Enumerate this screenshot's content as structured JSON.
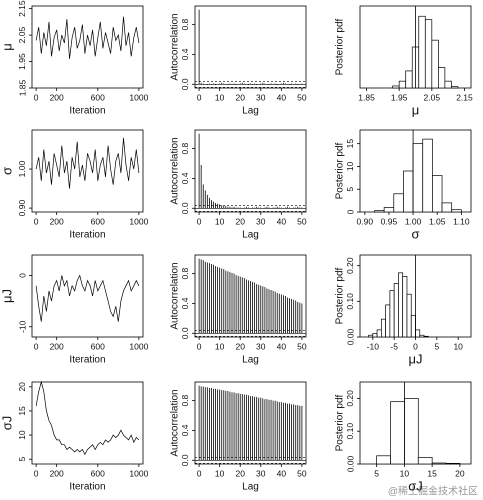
{
  "chart_data": [
    {
      "type": "trace",
      "xlabel": "Iteration",
      "ylabel": "μ",
      "x": [
        0,
        25,
        50,
        75,
        100,
        125,
        150,
        175,
        200,
        225,
        250,
        275,
        300,
        325,
        350,
        375,
        400,
        425,
        450,
        475,
        500,
        525,
        550,
        575,
        600,
        625,
        650,
        675,
        700,
        725,
        750,
        775,
        800,
        825,
        850,
        875,
        900,
        925,
        950,
        975,
        1000
      ],
      "values": [
        2.03,
        2.08,
        1.98,
        2.06,
        2.01,
        2.1,
        1.97,
        2.04,
        2.07,
        1.99,
        2.05,
        2.02,
        2.11,
        1.96,
        2.04,
        2.08,
        2.0,
        2.03,
        2.09,
        1.98,
        2.05,
        2.01,
        2.07,
        1.97,
        2.04,
        2.1,
        2.0,
        2.06,
        2.02,
        1.98,
        2.08,
        2.03,
        2.05,
        1.99,
        2.12,
        2.01,
        2.06,
        1.97,
        2.04,
        2.08,
        2.02
      ],
      "xlim": [
        -40,
        1040
      ],
      "ylim": [
        1.85,
        2.16
      ],
      "xticks": [
        0,
        200,
        600,
        1000
      ],
      "yticks": [
        1.85,
        1.95,
        2.05,
        2.15
      ]
    },
    {
      "type": "acf",
      "xlabel": "Lag",
      "ylabel": "Autocorrelation",
      "x": [
        0,
        1,
        2,
        3,
        4,
        5,
        6,
        7,
        8,
        9,
        10,
        11,
        12,
        13,
        14,
        15,
        16,
        17,
        18,
        19,
        20,
        21,
        22,
        23,
        24,
        25,
        26,
        27,
        28,
        29,
        30,
        31,
        32,
        33,
        34,
        35,
        36,
        37,
        38,
        39,
        40,
        41,
        42,
        43,
        44,
        45,
        46,
        47,
        48,
        49,
        50
      ],
      "values": [
        1,
        0.02,
        0.01,
        0.0,
        -0.01,
        0.01,
        0.0,
        0.01,
        -0.01,
        0.0,
        0.01,
        0.02,
        0.01,
        0.0,
        -0.01,
        0.01,
        0.0,
        0.01,
        -0.01,
        0.0,
        0.01,
        0.02,
        0.01,
        0.0,
        -0.01,
        0.01,
        0.0,
        0.01,
        -0.01,
        0.0,
        0.01,
        0.02,
        0.01,
        0.0,
        -0.01,
        0.01,
        0.0,
        0.01,
        -0.01,
        0.0,
        0.01,
        0.02,
        0.01,
        0.0,
        -0.01,
        0.01,
        0.0,
        0.01,
        -0.01,
        0.0,
        0.01
      ],
      "ci": [
        -0.04,
        0.04
      ],
      "xlim": [
        -2,
        52
      ],
      "ylim": [
        -0.05,
        1.05
      ],
      "xticks": [
        0,
        10,
        20,
        30,
        40,
        50
      ],
      "yticks": [
        {
          "value": 0,
          "label": "0.0"
        },
        {
          "value": 0.4,
          "label": "0.4"
        },
        {
          "value": 0.8,
          "label": "0.8"
        }
      ]
    },
    {
      "type": "histogram",
      "xlabel": "μ",
      "ylabel": "Posterior pdf",
      "bins": [
        1.93,
        1.95,
        1.97,
        1.99,
        2.01,
        2.03,
        2.05,
        2.07,
        2.09,
        2.11,
        2.13
      ],
      "values": [
        0.3,
        1,
        2.5,
        6,
        10.5,
        10,
        7,
        3,
        1,
        0.2
      ],
      "vline": 2.0,
      "xlim": [
        1.83,
        2.17
      ],
      "ylim": [
        0,
        12
      ],
      "xticks": [
        1.85,
        1.95,
        2.05,
        2.15
      ],
      "yticks": []
    },
    {
      "type": "trace",
      "xlabel": "Iteration",
      "ylabel": "σ",
      "x": [
        0,
        25,
        50,
        75,
        100,
        125,
        150,
        175,
        200,
        225,
        250,
        275,
        300,
        325,
        350,
        375,
        400,
        425,
        450,
        475,
        500,
        525,
        550,
        575,
        600,
        625,
        650,
        675,
        700,
        725,
        750,
        775,
        800,
        825,
        850,
        875,
        900,
        925,
        950,
        975,
        1000
      ],
      "values": [
        1.0,
        1.03,
        0.97,
        1.05,
        0.99,
        1.02,
        0.96,
        1.04,
        1.01,
        0.98,
        1.06,
        0.99,
        1.02,
        0.95,
        1.03,
        1.0,
        1.07,
        0.98,
        1.01,
        0.97,
        1.04,
        1.02,
        0.99,
        1.05,
        0.97,
        1.01,
        1.03,
        0.98,
        1.06,
        1.0,
        0.96,
        1.02,
        1.04,
        0.99,
        1.08,
        1.01,
        0.97,
        1.03,
        1.0,
        1.05,
        0.99
      ],
      "xlim": [
        -40,
        1040
      ],
      "ylim": [
        0.89,
        1.1
      ],
      "xticks": [
        0,
        200,
        600,
        1000
      ],
      "yticks": [
        {
          "value": 0.9,
          "label": "0.90"
        },
        {
          "value": 1,
          "label": "1.00"
        }
      ]
    },
    {
      "type": "acf",
      "xlabel": "Lag",
      "ylabel": "Autocorrelation",
      "x": [
        0,
        1,
        2,
        3,
        4,
        5,
        6,
        7,
        8,
        9,
        10,
        11,
        12,
        13,
        14,
        15,
        16,
        17,
        18,
        19,
        20,
        21,
        22,
        23,
        24,
        25,
        26,
        27,
        28,
        29,
        30,
        31,
        32,
        33,
        34,
        35,
        36,
        37,
        38,
        39,
        40,
        41,
        42,
        43,
        44,
        45,
        46,
        47,
        48,
        49,
        50
      ],
      "values": [
        1,
        0.58,
        0.32,
        0.24,
        0.18,
        0.14,
        0.11,
        0.09,
        0.07,
        0.06,
        0.05,
        0.04,
        0.03,
        0.03,
        0.02,
        0.02,
        0.01,
        0.02,
        0.01,
        0.01,
        0.01,
        0.0,
        0.01,
        0.02,
        0.01,
        0.0,
        0.01,
        0.01,
        0.02,
        0.01,
        0.01,
        0.0,
        0.01,
        0.02,
        0.01,
        0.0,
        0.01,
        0.01,
        0.02,
        0.01,
        0.01,
        0.0,
        0.01,
        0.02,
        0.01,
        0.0,
        0.01,
        0.01,
        0.02,
        0.01,
        0.01
      ],
      "ci": [
        -0.04,
        0.04
      ],
      "xlim": [
        -2,
        52
      ],
      "ylim": [
        -0.05,
        1.05
      ],
      "xticks": [
        0,
        10,
        20,
        30,
        40,
        50
      ],
      "yticks": [
        {
          "value": 0,
          "label": "0.0"
        },
        {
          "value": 0.4,
          "label": "0.4"
        },
        {
          "value": 0.8,
          "label": "0.8"
        }
      ]
    },
    {
      "type": "histogram",
      "xlabel": "σ",
      "ylabel": "Posterior pdf",
      "bins": [
        0.92,
        0.94,
        0.96,
        0.98,
        1.0,
        1.02,
        1.04,
        1.06,
        1.08,
        1.1
      ],
      "values": [
        0.3,
        1,
        4,
        9,
        15,
        16,
        8,
        2,
        0.5
      ],
      "vline": 1.0,
      "xlim": [
        0.89,
        1.12
      ],
      "ylim": [
        0,
        18
      ],
      "xticks": [
        {
          "value": 0.9,
          "label": "0.90"
        },
        0.95,
        {
          "value": 1,
          "label": "1.00"
        },
        1.05,
        {
          "value": 1.1,
          "label": "1.10"
        }
      ],
      "yticks": [
        0,
        5,
        10,
        15
      ]
    },
    {
      "type": "trace",
      "xlabel": "Iteration",
      "ylabel": "μJ",
      "x": [
        0,
        25,
        50,
        75,
        100,
        125,
        150,
        175,
        200,
        225,
        250,
        275,
        300,
        325,
        350,
        375,
        400,
        425,
        450,
        475,
        500,
        525,
        550,
        575,
        600,
        625,
        650,
        675,
        700,
        725,
        750,
        775,
        800,
        825,
        850,
        875,
        900,
        925,
        950,
        975,
        1000
      ],
      "values": [
        -2,
        -6,
        -9,
        -4,
        -7,
        -3,
        -5,
        -2,
        -1,
        -3,
        0,
        -2,
        -1,
        -4,
        -2,
        -3,
        -1,
        0,
        -2,
        -3,
        -1,
        -2,
        -4,
        -1,
        -3,
        -2,
        -1,
        -3,
        -5,
        -7,
        -8,
        -6,
        -9,
        -5,
        -3,
        -2,
        -1,
        -3,
        -2,
        -1,
        -2
      ],
      "xlim": [
        -40,
        1040
      ],
      "ylim": [
        -12,
        4
      ],
      "xticks": [
        0,
        200,
        600,
        1000
      ],
      "yticks": [
        -10,
        0
      ]
    },
    {
      "type": "acf",
      "xlabel": "Lag",
      "ylabel": "Autocorrelation",
      "x": [
        0,
        1,
        2,
        3,
        4,
        5,
        6,
        7,
        8,
        9,
        10,
        11,
        12,
        13,
        14,
        15,
        16,
        17,
        18,
        19,
        20,
        21,
        22,
        23,
        24,
        25,
        26,
        27,
        28,
        29,
        30,
        31,
        32,
        33,
        34,
        35,
        36,
        37,
        38,
        39,
        40,
        41,
        42,
        43,
        44,
        45,
        46,
        47,
        48,
        49,
        50
      ],
      "values": [
        1,
        0.99,
        0.98,
        0.96,
        0.95,
        0.94,
        0.93,
        0.92,
        0.9,
        0.89,
        0.88,
        0.87,
        0.86,
        0.84,
        0.83,
        0.82,
        0.81,
        0.8,
        0.78,
        0.77,
        0.76,
        0.75,
        0.74,
        0.72,
        0.71,
        0.7,
        0.69,
        0.68,
        0.66,
        0.65,
        0.64,
        0.63,
        0.62,
        0.6,
        0.59,
        0.58,
        0.57,
        0.56,
        0.54,
        0.53,
        0.52,
        0.51,
        0.5,
        0.48,
        0.47,
        0.46,
        0.45,
        0.44,
        0.42,
        0.41,
        0.4
      ],
      "ci": [
        -0.04,
        0.04
      ],
      "xlim": [
        -2,
        52
      ],
      "ylim": [
        -0.05,
        1.05
      ],
      "xticks": [
        0,
        10,
        20,
        30,
        40,
        50
      ],
      "yticks": [
        {
          "value": 0,
          "label": "0.0"
        },
        {
          "value": 0.4,
          "label": "0.4"
        },
        {
          "value": 0.8,
          "label": "0.8"
        }
      ]
    },
    {
      "type": "histogram",
      "xlabel": "μJ",
      "ylabel": "Posterior pdf",
      "bins": [
        -11,
        -10,
        -9,
        -8,
        -7,
        -6,
        -5,
        -4,
        -3,
        -2,
        -1,
        0,
        1,
        2,
        3
      ],
      "values": [
        0.005,
        0.01,
        0.02,
        0.05,
        0.09,
        0.13,
        0.15,
        0.18,
        0.17,
        0.12,
        0.06,
        0.02,
        0.005,
        0.002
      ],
      "vline": 0,
      "xlim": [
        -13,
        13
      ],
      "ylim": [
        0,
        0.23
      ],
      "xticks": [
        -10,
        -5,
        0,
        5,
        10
      ],
      "yticks": [
        {
          "value": 0,
          "label": "0.00"
        },
        {
          "value": 0.1,
          "label": "0.10"
        },
        {
          "value": 0.2,
          "label": "0.20"
        }
      ]
    },
    {
      "type": "trace",
      "xlabel": "Iteration",
      "ylabel": "σJ",
      "x": [
        0,
        25,
        50,
        75,
        100,
        125,
        150,
        175,
        200,
        225,
        250,
        275,
        300,
        325,
        350,
        375,
        400,
        425,
        450,
        475,
        500,
        525,
        550,
        575,
        600,
        625,
        650,
        675,
        700,
        725,
        750,
        775,
        800,
        825,
        850,
        875,
        900,
        925,
        950,
        975,
        1000
      ],
      "values": [
        16,
        19,
        21,
        19,
        15,
        13,
        12,
        10,
        9,
        9,
        8,
        8,
        7,
        7.5,
        7,
        6.5,
        7,
        6.5,
        7,
        6,
        7,
        7.5,
        8,
        7,
        8,
        8.5,
        8,
        9,
        8.5,
        9,
        10,
        9.5,
        10,
        11,
        10,
        9.5,
        9,
        10,
        8.5,
        9.5,
        9
      ],
      "xlim": [
        -40,
        1040
      ],
      "ylim": [
        4,
        21
      ],
      "xticks": [
        0,
        200,
        600,
        1000
      ],
      "yticks": [
        5,
        10,
        15,
        20
      ]
    },
    {
      "type": "acf",
      "xlabel": "Lag",
      "ylabel": "Autocorrelation",
      "x": [
        0,
        1,
        2,
        3,
        4,
        5,
        6,
        7,
        8,
        9,
        10,
        11,
        12,
        13,
        14,
        15,
        16,
        17,
        18,
        19,
        20,
        21,
        22,
        23,
        24,
        25,
        26,
        27,
        28,
        29,
        30,
        31,
        32,
        33,
        34,
        35,
        36,
        37,
        38,
        39,
        40,
        41,
        42,
        43,
        44,
        45,
        46,
        47,
        48,
        49,
        50
      ],
      "values": [
        1,
        0.99,
        0.99,
        0.98,
        0.98,
        0.97,
        0.97,
        0.96,
        0.96,
        0.95,
        0.95,
        0.94,
        0.94,
        0.93,
        0.93,
        0.92,
        0.91,
        0.91,
        0.9,
        0.9,
        0.89,
        0.89,
        0.88,
        0.88,
        0.87,
        0.86,
        0.86,
        0.85,
        0.85,
        0.84,
        0.84,
        0.83,
        0.82,
        0.82,
        0.81,
        0.81,
        0.8,
        0.8,
        0.79,
        0.78,
        0.78,
        0.77,
        0.77,
        0.76,
        0.76,
        0.75,
        0.75,
        0.74,
        0.74,
        0.73,
        0.73
      ],
      "ci": [
        -0.04,
        0.04
      ],
      "xlim": [
        -2,
        52
      ],
      "ylim": [
        -0.05,
        1.05
      ],
      "xticks": [
        0,
        10,
        20,
        30,
        40,
        50
      ],
      "yticks": [
        {
          "value": 0,
          "label": "0.0"
        },
        {
          "value": 0.4,
          "label": "0.4"
        },
        {
          "value": 0.8,
          "label": "0.8"
        }
      ]
    },
    {
      "type": "histogram",
      "xlabel": "σJ",
      "ylabel": "Posterior pdf",
      "bins": [
        5,
        7.5,
        10,
        12.5,
        15,
        17.5,
        20
      ],
      "values": [
        0.025,
        0.19,
        0.2,
        0.02,
        0.003,
        0.002
      ],
      "vline": 10,
      "xlim": [
        2,
        22
      ],
      "ylim": [
        0,
        0.25
      ],
      "xticks": [
        5,
        10,
        15,
        20
      ],
      "yticks": [
        {
          "value": 0,
          "label": "0.00"
        },
        {
          "value": 0.1,
          "label": "0.10"
        },
        {
          "value": 0.2,
          "label": "0.20"
        }
      ]
    }
  ],
  "watermark": "@稀土掘金技术社区"
}
